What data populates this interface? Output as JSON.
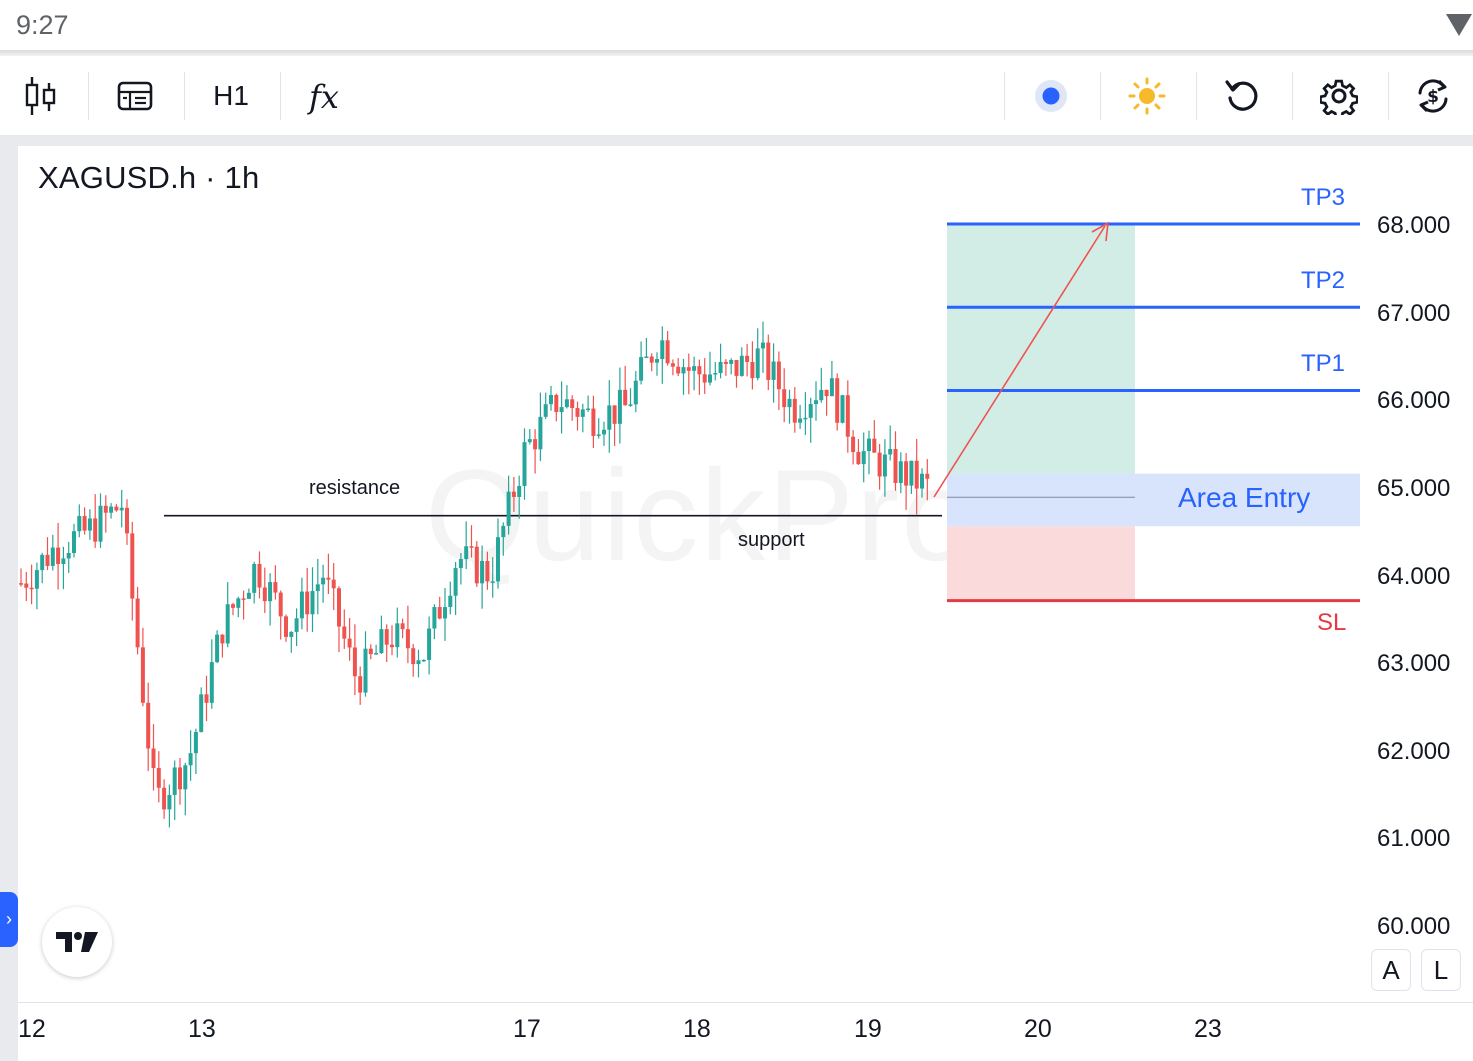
{
  "status_bar": {
    "time": "9:27"
  },
  "toolbar": {
    "chart_type_icon": "candlestick-icon",
    "indicators_template_icon": "chart-templates-icon",
    "timeframe": "H1",
    "indicators_icon": "fx-icon",
    "buttons": [
      "record-dot-icon",
      "sun-icon",
      "reset-icon",
      "settings-gear-icon",
      "currency-sync-icon"
    ]
  },
  "chart": {
    "symbol_title": "XAGUSD.h · 1h",
    "watermark": "QuickPro",
    "annotations": {
      "resistance": "resistance",
      "support": "support"
    },
    "levels": {
      "tp3": {
        "label": "TP3",
        "price": 68.0
      },
      "tp2": {
        "label": "TP2",
        "price": 67.05
      },
      "tp1": {
        "label": "TP1",
        "price": 66.1
      },
      "entry_label": "Area Entry",
      "entry_range": [
        64.55,
        65.15
      ],
      "sl": {
        "label": "SL",
        "price": 63.7
      }
    },
    "colors": {
      "up": "#26a69a",
      "down": "#ef5350",
      "tp_line": "#2962ff",
      "sl_line": "#e53945",
      "profit_zone": "#d2ede6",
      "loss_zone": "#fbdadb",
      "entry_zone": "#d4e2fb"
    },
    "scale_buttons": {
      "auto": "A",
      "log": "L"
    },
    "logo": "tradingview-logo"
  },
  "chart_data": {
    "type": "candlestick",
    "symbol": "XAGUSD.h",
    "timeframe": "1h",
    "y_axis": {
      "ticks": [
        "68.000",
        "67.000",
        "66.000",
        "65.000",
        "64.000",
        "63.000",
        "62.000",
        "61.000",
        "60.000"
      ],
      "range": [
        59.3,
        69.0
      ]
    },
    "x_axis": {
      "ticks": [
        "12",
        "13",
        "17",
        "18",
        "19",
        "20",
        "23"
      ]
    },
    "horizontal_line": {
      "price": 64.67,
      "labels": [
        "resistance",
        "support"
      ]
    },
    "price_path": [
      {
        "day": "12",
        "close": 63.9
      },
      {
        "day": "12",
        "close": 64.3
      },
      {
        "day": "12",
        "close": 64.5
      },
      {
        "day": "13",
        "close": 64.8
      },
      {
        "day": "13",
        "close": 61.4
      },
      {
        "day": "13",
        "close": 61.9
      },
      {
        "day": "13",
        "close": 63.4
      },
      {
        "day": "13",
        "close": 64.1
      },
      {
        "day": "13",
        "close": 63.4
      },
      {
        "day": "13",
        "close": 64.0
      },
      {
        "day": "13",
        "close": 62.8
      },
      {
        "day": "13",
        "close": 63.3
      },
      {
        "day": "13",
        "close": 63.1
      },
      {
        "day": "17",
        "close": 64.2
      },
      {
        "day": "17",
        "close": 64.0
      },
      {
        "day": "17",
        "close": 65.4
      },
      {
        "day": "17",
        "close": 66.0
      },
      {
        "day": "17",
        "close": 65.8
      },
      {
        "day": "17",
        "close": 65.9
      },
      {
        "day": "18",
        "close": 66.7
      },
      {
        "day": "18",
        "close": 66.3
      },
      {
        "day": "18",
        "close": 66.3
      },
      {
        "day": "18",
        "close": 66.5
      },
      {
        "day": "18",
        "close": 65.9
      },
      {
        "day": "19",
        "close": 66.2
      },
      {
        "day": "19",
        "close": 65.4
      },
      {
        "day": "19",
        "close": 65.2
      },
      {
        "day": "19",
        "close": 65.0
      }
    ]
  }
}
